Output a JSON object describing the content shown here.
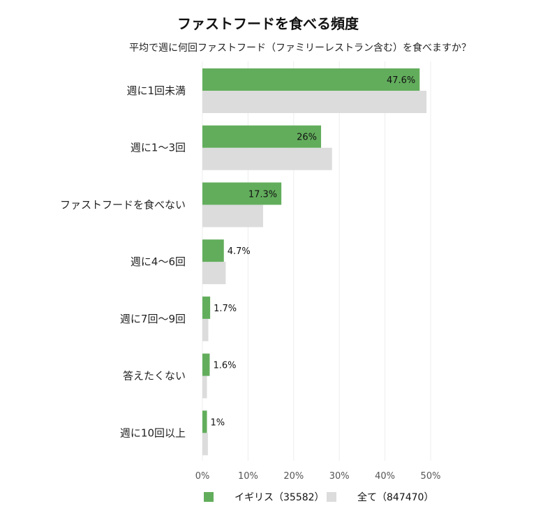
{
  "chart_data": {
    "type": "bar",
    "orientation": "horizontal",
    "title": "ファストフードを食べる頻度",
    "subtitle": "平均で週に何回ファストフード（ファミリーレストラン含む）を食べますか？",
    "categories": [
      "週に1回未満",
      "週に1〜3回",
      "ファストフードを食べない",
      "週に4〜6回",
      "週に7回〜9回",
      "答えたくない",
      "週に10回以上"
    ],
    "series": [
      {
        "name": "イギリス（35582）",
        "values": [
          47.6,
          26,
          17.3,
          4.7,
          1.7,
          1.6,
          1
        ],
        "labels": [
          "47.6%",
          "26%",
          "17.3%",
          "4.7%",
          "1.7%",
          "1.6%",
          "1%"
        ],
        "color": "#62ad5c"
      },
      {
        "name": "全て（847470）",
        "values": [
          49.1,
          28.4,
          13.3,
          5.1,
          1.3,
          1.0,
          1.2
        ],
        "color": "#dcdcdc"
      }
    ],
    "xlim": [
      0,
      50
    ],
    "xticks": [
      "0%",
      "10%",
      "20%",
      "30%",
      "40%",
      "50%"
    ],
    "grid": true,
    "legend_position": "bottom"
  }
}
